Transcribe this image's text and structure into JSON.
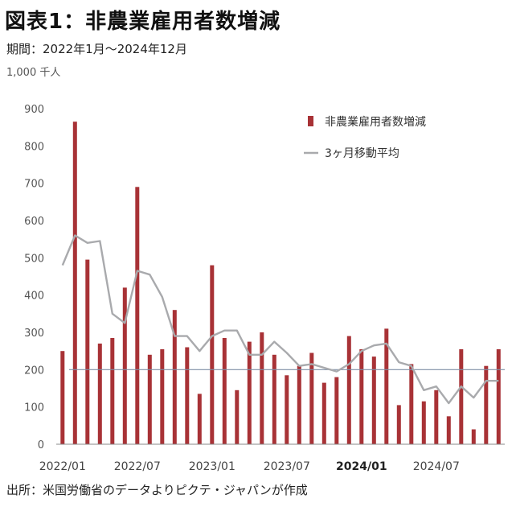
{
  "title": "図表1：非農業雇用者数増減",
  "subtitle": "期間：2022年1月～2024年12月",
  "unit": "1,000 千人",
  "source": "出所：米国労働省のデータよりピクテ・ジャパンが作成",
  "chart_data": {
    "type": "bar",
    "ylim": [
      0,
      900
    ],
    "yticks": [
      "0",
      "100",
      "200",
      "300",
      "400",
      "500",
      "600",
      "700",
      "800",
      "900"
    ],
    "reference_line": 200,
    "xtick_labels": [
      {
        "index": 0,
        "label": "2022/01"
      },
      {
        "index": 6,
        "label": "2022/07"
      },
      {
        "index": 12,
        "label": "2023/01"
      },
      {
        "index": 18,
        "label": "2023/07"
      },
      {
        "index": 24,
        "label": "2024/01"
      },
      {
        "index": 30,
        "label": "2024/07"
      }
    ],
    "legend": {
      "bar_label": "非農業雇用者数増減",
      "line_label": "3ヶ月移動平均"
    },
    "colors": {
      "bar": "#a83236",
      "line": "#a9aaad",
      "reference": "#7f8fa6",
      "axis": "#888888"
    },
    "series": [
      {
        "name": "非農業雇用者数増減",
        "type": "bar",
        "values": [
          250,
          865,
          495,
          270,
          285,
          420,
          690,
          240,
          255,
          360,
          260,
          135,
          480,
          285,
          145,
          275,
          300,
          240,
          185,
          210,
          245,
          165,
          180,
          290,
          255,
          235,
          310,
          105,
          215,
          115,
          145,
          75,
          255,
          40,
          210,
          255
        ]
      },
      {
        "name": "3ヶ月移動平均",
        "type": "line",
        "values": [
          480,
          560,
          540,
          545,
          350,
          325,
          465,
          455,
          395,
          290,
          290,
          250,
          290,
          305,
          305,
          240,
          240,
          275,
          245,
          210,
          215,
          205,
          195,
          215,
          250,
          265,
          270,
          220,
          210,
          145,
          155,
          110,
          155,
          125,
          170,
          170
        ]
      }
    ]
  }
}
